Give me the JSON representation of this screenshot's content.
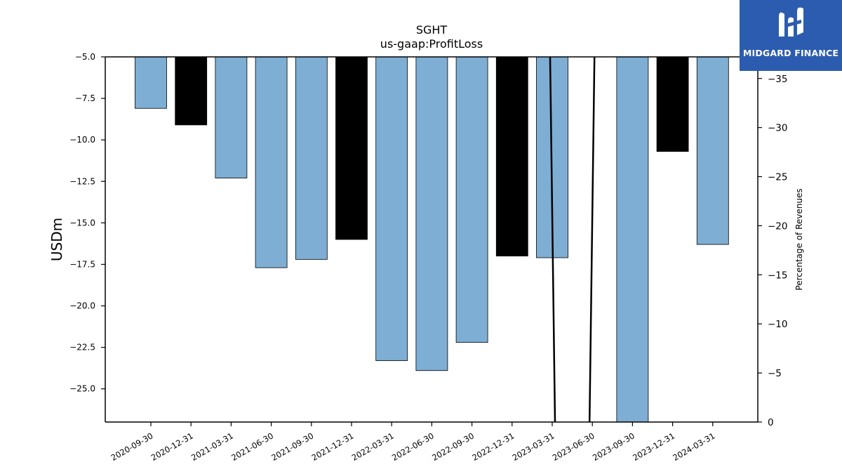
{
  "brand": {
    "logo_text": "MIDGARD FINANCE",
    "background": "#2c5caf",
    "icon": "midgard-logo-icon"
  },
  "chart_data": {
    "type": "bar",
    "title": "SGHT",
    "subtitle": "us-gaap:ProfitLoss",
    "ylabel": "USDm",
    "y2label": "Percentage of Revenues",
    "ylim": [
      -27,
      -5
    ],
    "y2lim": [
      0,
      -37.2
    ],
    "yticks": [
      -5.0,
      -7.5,
      -10.0,
      -12.5,
      -15.0,
      -17.5,
      -20.0,
      -22.5,
      -25.0
    ],
    "y2ticks": [
      -35,
      -30,
      -25,
      -20,
      -15,
      -10,
      -5,
      0
    ],
    "categories": [
      "2020-09-30",
      "2020-12-31",
      "2021-03-31",
      "2021-06-30",
      "2021-09-30",
      "2021-12-31",
      "2022-03-31",
      "2022-06-30",
      "2022-09-30",
      "2022-12-31",
      "2023-03-31",
      "2023-06-30",
      "2023-09-30",
      "2023-12-31",
      "2024-03-31"
    ],
    "values": [
      -8.1,
      -9.1,
      -12.3,
      -17.7,
      -17.2,
      -16.0,
      -23.3,
      -23.9,
      -22.2,
      -17.0,
      -17.1,
      null,
      -27.0,
      -10.7,
      -16.3
    ],
    "bar_colors": [
      "#7eaed3",
      "#000000",
      "#7eaed3",
      "#7eaed3",
      "#7eaed3",
      "#000000",
      "#7eaed3",
      "#7eaed3",
      "#7eaed3",
      "#000000",
      "#7eaed3",
      "#7eaed3",
      "#7eaed3",
      "#000000",
      "#7eaed3"
    ],
    "line_series": {
      "name": "",
      "axis": "right",
      "color": "#000000",
      "x": [
        "2023-03-31",
        "2023-03-31",
        "2023-06-30",
        "2023-06-30"
      ],
      "values": [
        -37.2,
        0,
        0,
        -37.2
      ]
    },
    "grid": false,
    "legend": "none"
  }
}
